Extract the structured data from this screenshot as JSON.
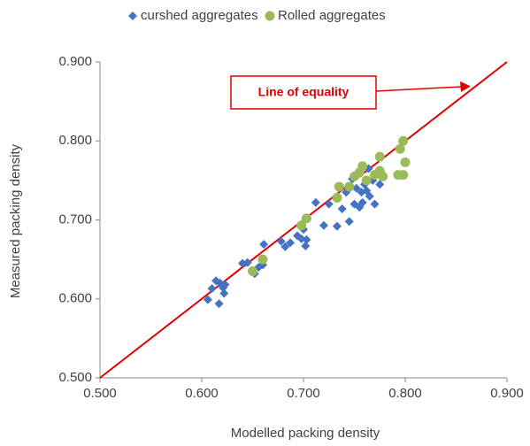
{
  "chart_data": {
    "type": "scatter",
    "x_label": "Modelled packing density",
    "y_label": "Measured packing density",
    "xlim": [
      0.5,
      0.9
    ],
    "ylim": [
      0.5,
      0.9
    ],
    "xticks": [
      {
        "value": 0.5,
        "label": "0.500"
      },
      {
        "value": 0.6,
        "label": "0.600"
      },
      {
        "value": 0.7,
        "label": "0.700"
      },
      {
        "value": 0.8,
        "label": "0.800"
      },
      {
        "value": 0.9,
        "label": "0.900"
      }
    ],
    "yticks": [
      {
        "value": 0.5,
        "label": "0.500"
      },
      {
        "value": 0.6,
        "label": "0.600"
      },
      {
        "value": 0.7,
        "label": "0.700"
      },
      {
        "value": 0.8,
        "label": "0.800"
      },
      {
        "value": 0.9,
        "label": "0.900"
      }
    ],
    "legend": "top",
    "reference_line": {
      "label": "Line of equality",
      "color": "#e00000",
      "x": [
        0.5,
        0.9
      ],
      "values": [
        0.5,
        0.9
      ]
    },
    "series": [
      {
        "name": "curshed aggregates",
        "color": "#4472c4",
        "marker": "diamond",
        "x": [
          0.606,
          0.61,
          0.614,
          0.618,
          0.617,
          0.621,
          0.622,
          0.623,
          0.64,
          0.645,
          0.652,
          0.656,
          0.66,
          0.661,
          0.678,
          0.682,
          0.687,
          0.694,
          0.698,
          0.7,
          0.702,
          0.703,
          0.712,
          0.72,
          0.725,
          0.733,
          0.738,
          0.742,
          0.745,
          0.748,
          0.75,
          0.752,
          0.755,
          0.757,
          0.758,
          0.76,
          0.762,
          0.764,
          0.765,
          0.768,
          0.77,
          0.775
        ],
        "values": [
          0.599,
          0.613,
          0.623,
          0.62,
          0.594,
          0.614,
          0.607,
          0.618,
          0.645,
          0.646,
          0.632,
          0.64,
          0.643,
          0.669,
          0.673,
          0.666,
          0.671,
          0.68,
          0.676,
          0.688,
          0.667,
          0.675,
          0.722,
          0.693,
          0.72,
          0.692,
          0.714,
          0.735,
          0.698,
          0.752,
          0.72,
          0.74,
          0.716,
          0.735,
          0.722,
          0.745,
          0.737,
          0.765,
          0.73,
          0.75,
          0.72,
          0.745
        ]
      },
      {
        "name": "Rolled aggregates",
        "color": "#9bbb59",
        "marker": "circle",
        "x": [
          0.65,
          0.66,
          0.698,
          0.703,
          0.733,
          0.735,
          0.745,
          0.75,
          0.755,
          0.758,
          0.762,
          0.77,
          0.775,
          0.775,
          0.778,
          0.793,
          0.795,
          0.798,
          0.8,
          0.798
        ],
        "values": [
          0.635,
          0.65,
          0.693,
          0.702,
          0.728,
          0.742,
          0.742,
          0.755,
          0.76,
          0.768,
          0.75,
          0.757,
          0.78,
          0.762,
          0.755,
          0.757,
          0.79,
          0.8,
          0.773,
          0.757
        ]
      }
    ]
  }
}
